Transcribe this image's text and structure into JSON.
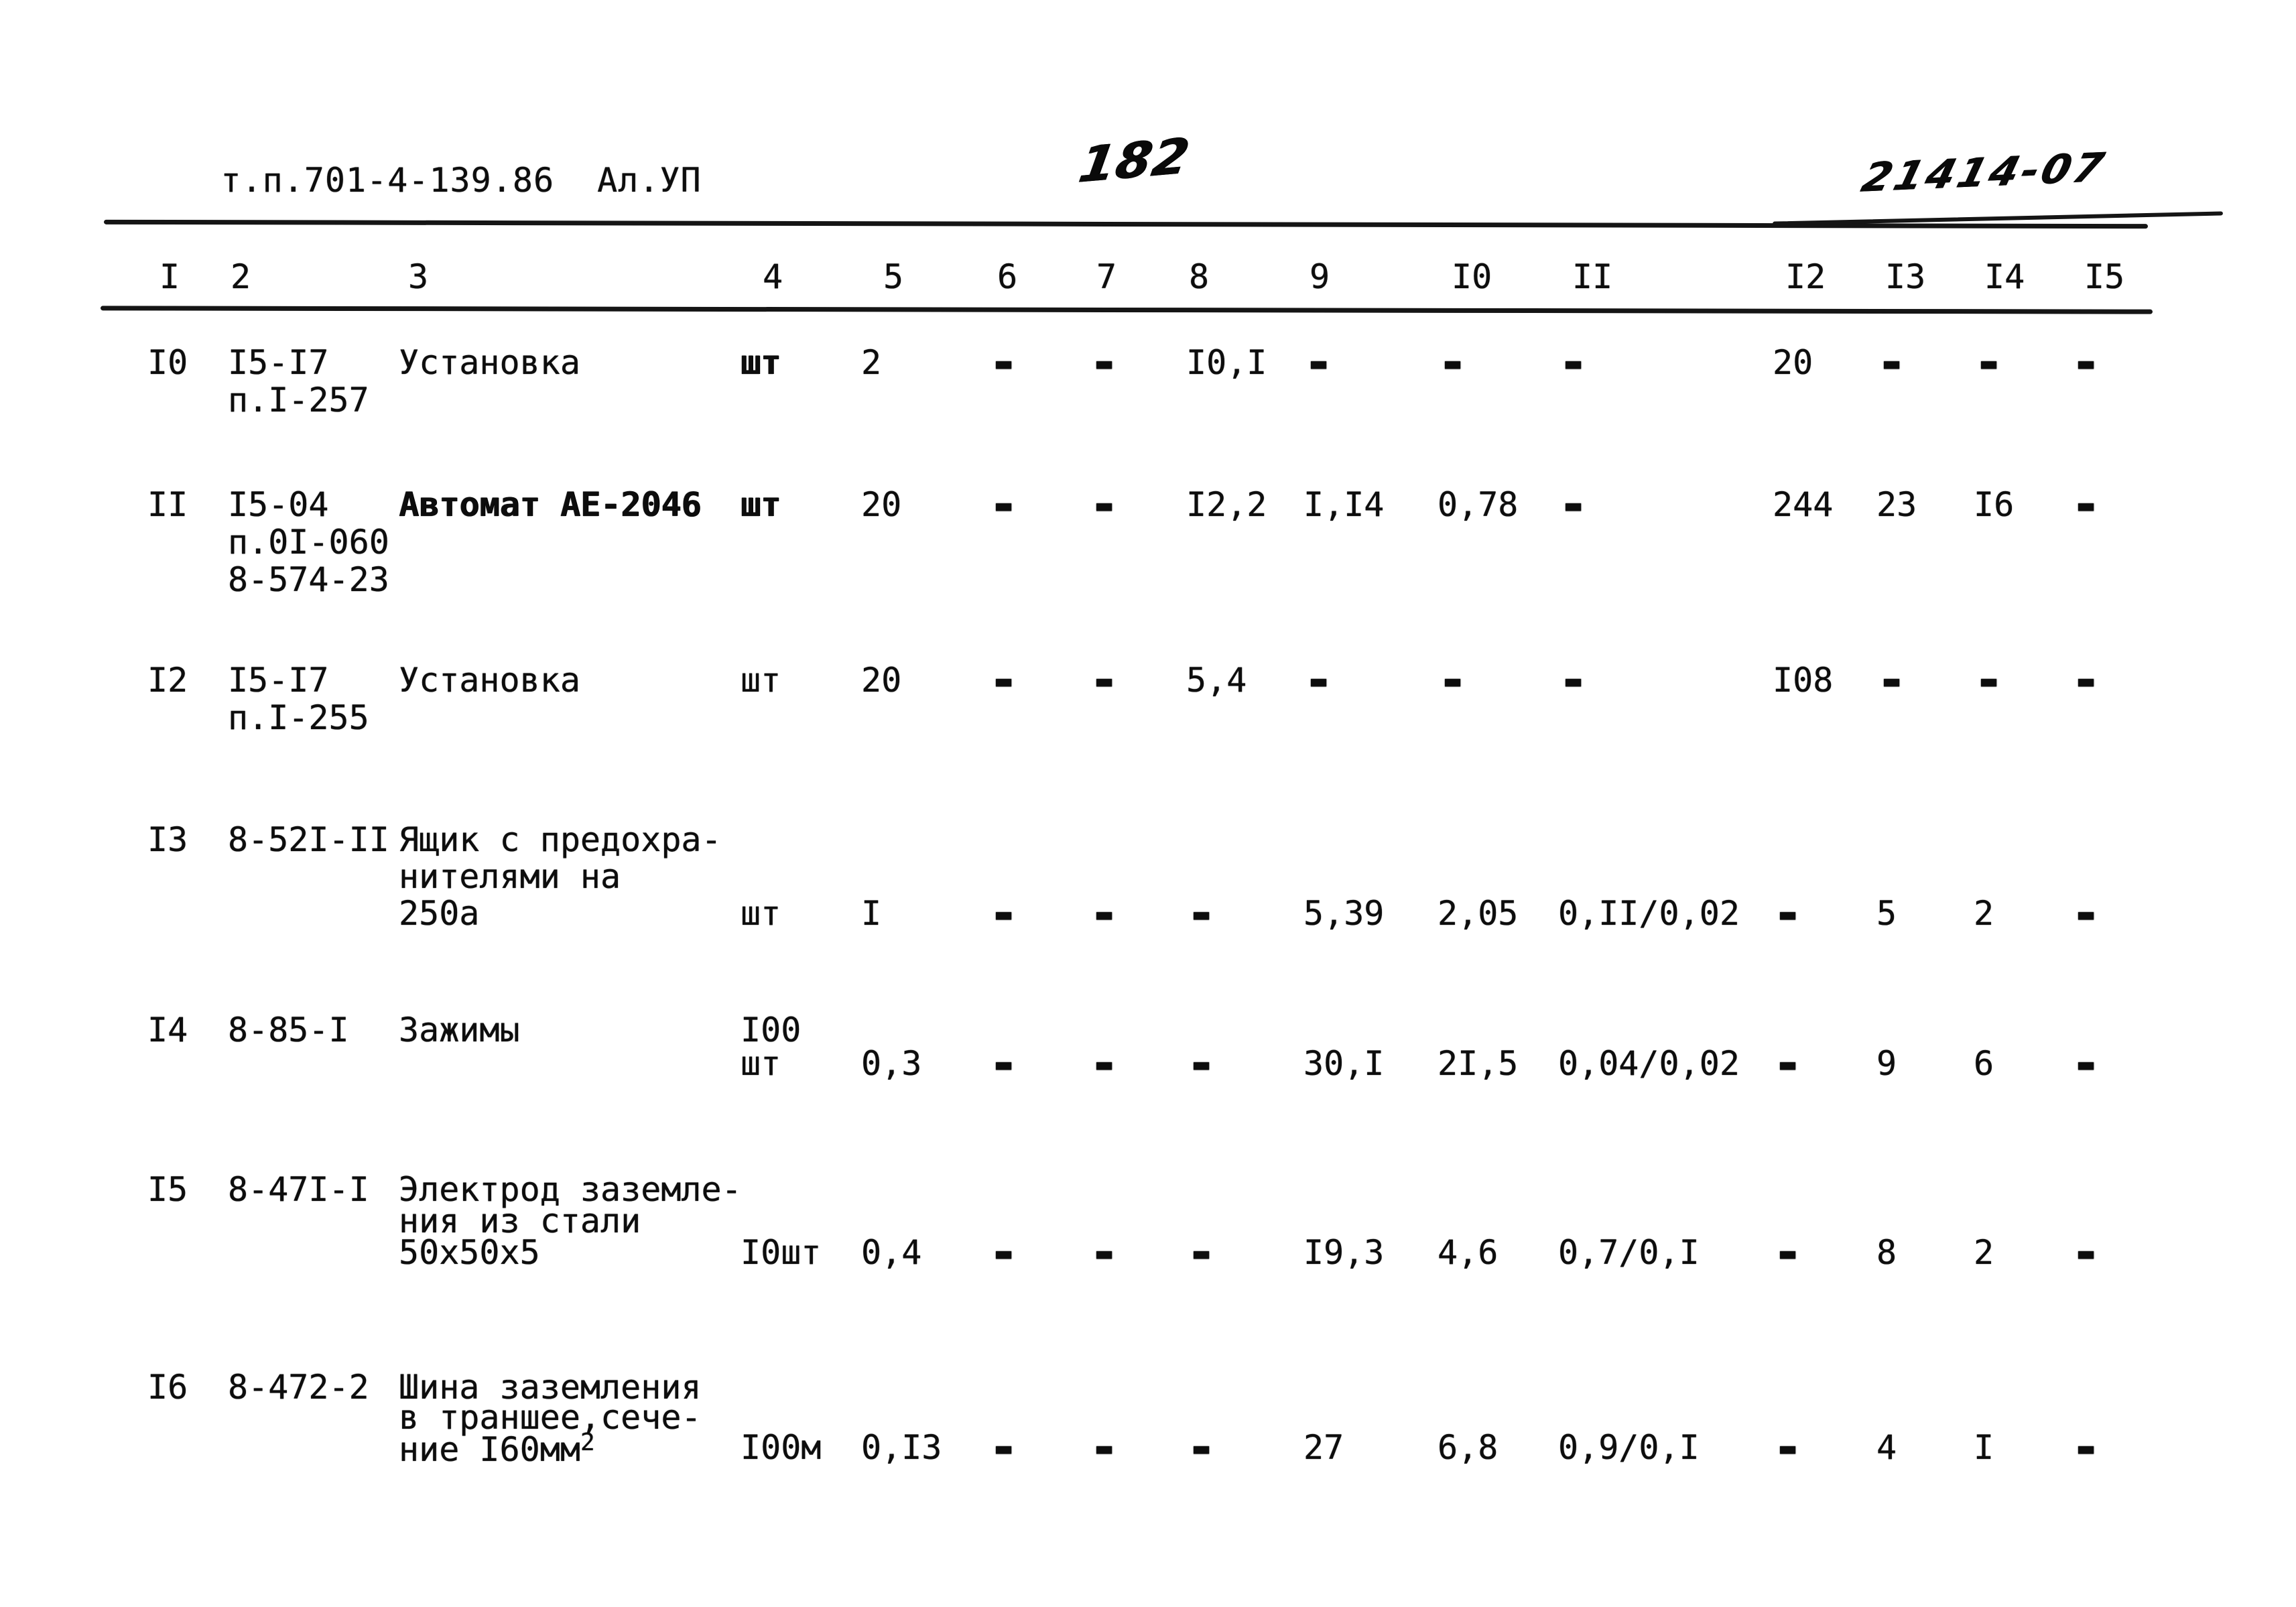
{
  "page": {
    "title_code": "т.п.701-4-139.86",
    "title_album": "Ал.УП",
    "page_number": "182",
    "doc_number": "21414-07"
  },
  "table": {
    "columns": [
      "I",
      "2",
      "3",
      "4",
      "5",
      "6",
      "7",
      "8",
      "9",
      "I0",
      "II",
      "I2",
      "I3",
      "I4",
      "I5"
    ],
    "rows": [
      {
        "num": "I0",
        "code_lines": [
          "I5-I7",
          "п.I-257"
        ],
        "name_lines": [
          "Установка"
        ],
        "unit_lines": [
          "шт"
        ],
        "values": [
          "2",
          "-",
          "-",
          "I0,I",
          "-",
          "-",
          "-",
          "20",
          "-",
          "-",
          "-"
        ]
      },
      {
        "num": "II",
        "code_lines": [
          "I5-04",
          "п.0I-060",
          "8-574-23"
        ],
        "name_lines": [
          "Автомат АЕ-2046"
        ],
        "unit_lines": [
          "шт"
        ],
        "values": [
          "20",
          "-",
          "-",
          "I2,2",
          "I,I4",
          "0,78",
          "-",
          "244",
          "23",
          "I6",
          "-"
        ]
      },
      {
        "num": "I2",
        "code_lines": [
          "I5-I7",
          "п.I-255"
        ],
        "name_lines": [
          "Установка"
        ],
        "unit_lines": [
          "шт"
        ],
        "values": [
          "20",
          "-",
          "-",
          "5,4",
          "-",
          "-",
          "-",
          "I08",
          "-",
          "-",
          "-"
        ]
      },
      {
        "num": "I3",
        "code_lines": [
          "8-52I-II"
        ],
        "name_lines": [
          "Ящик с предохра-",
          "нителями на",
          "250а"
        ],
        "unit_lines": [
          "шт"
        ],
        "values": [
          "I",
          "-",
          "-",
          "-",
          "5,39",
          "2,05",
          "0,II/0,02",
          "-",
          "5",
          "2",
          "-"
        ]
      },
      {
        "num": "I4",
        "code_lines": [
          "8-85-I"
        ],
        "name_lines": [
          "Зажимы"
        ],
        "unit_lines": [
          "I00",
          "шт"
        ],
        "values": [
          "0,3",
          "-",
          "-",
          "-",
          "30,I",
          "2I,5",
          "0,04/0,02",
          "-",
          "9",
          "6",
          "-"
        ]
      },
      {
        "num": "I5",
        "code_lines": [
          "8-47I-I"
        ],
        "name_lines": [
          "Электрод заземле-",
          "ния из стали",
          "50х50х5"
        ],
        "unit_lines": [
          "I0шт"
        ],
        "values": [
          "0,4",
          "-",
          "-",
          "-",
          "I9,3",
          "4,6",
          "0,7/0,I",
          "-",
          "8",
          "2",
          "-"
        ]
      },
      {
        "num": "I6",
        "code_lines": [
          "8-472-2"
        ],
        "name_lines": [
          "Шина заземления",
          "в траншее,сече-",
          "ние I60мм2"
        ],
        "unit_lines": [
          "I00м"
        ],
        "values": [
          "0,I3",
          "-",
          "-",
          "-",
          "27",
          "6,8",
          "0,9/0,I",
          "-",
          "4",
          "I",
          "-"
        ]
      }
    ]
  }
}
